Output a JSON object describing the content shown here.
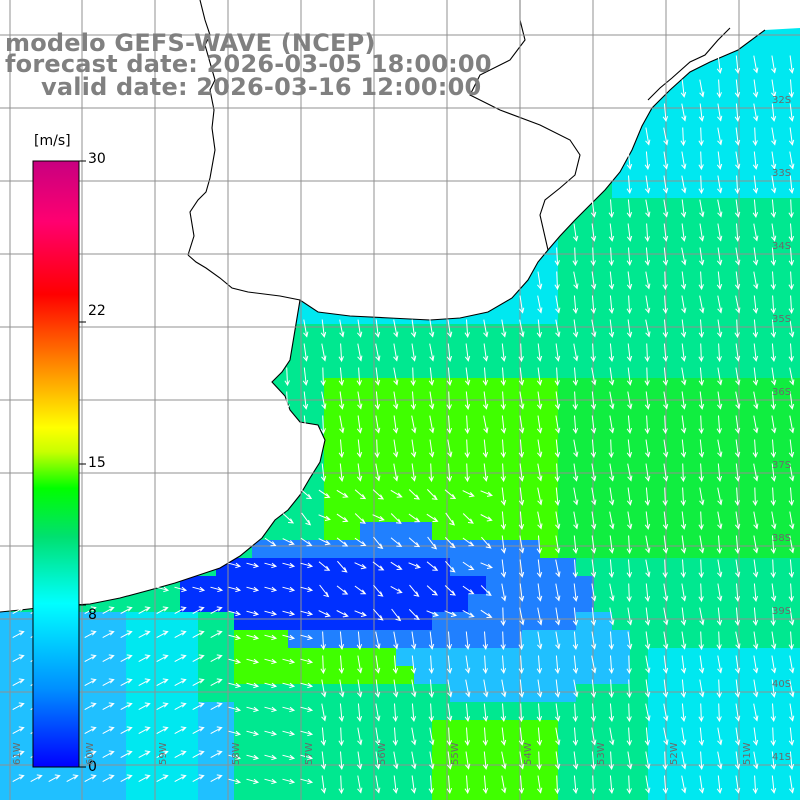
{
  "titles": {
    "line1": "modelo GEFS-WAVE (NCEP)",
    "line2": "forecast date: 2026-03-05 18:00:00",
    "line3": "valid date: 2026-03-16 12:00:00"
  },
  "colorbar": {
    "unit": "[m/s]",
    "ticks": [
      "30",
      "22",
      "15",
      "8",
      "0"
    ],
    "tick_values": [
      30,
      22,
      15,
      8,
      0
    ],
    "colors": [
      "#0000ff",
      "#00b4ff",
      "#00ffff",
      "#00d2a0",
      "#00ff00",
      "#b4ff00",
      "#ffff00",
      "#ff8c00",
      "#ff0000",
      "#ff0080",
      "#c80080"
    ]
  },
  "grid": {
    "lat_labels": [
      "32S",
      "33S",
      "34S",
      "35S",
      "36S",
      "37S",
      "38S",
      "39S",
      "40S",
      "41S"
    ],
    "lon_labels": [
      "61W",
      "60W",
      "59W",
      "58W",
      "57W",
      "56W",
      "55W",
      "54W",
      "53W",
      "52W",
      "51W"
    ]
  },
  "chart_data": {
    "type": "heatmap",
    "title": "modelo GEFS-WAVE (NCEP)",
    "variable": "wind speed",
    "units": "m/s",
    "color_range": [
      0,
      30
    ],
    "forecast_date": "2026-03-05 18:00:00",
    "valid_date": "2026-03-16 12:00:00",
    "ocean_colors": {
      "slow": "#0030ff",
      "medium_low": "#2080ff",
      "light_blue": "#20c0ff",
      "cyan": "#00e8f0",
      "teal_green": "#00e890",
      "green": "#10ee40",
      "bright_green": "#40ff00",
      "land": "#ffffff",
      "coast": "#000000",
      "grid": "#909090"
    }
  }
}
